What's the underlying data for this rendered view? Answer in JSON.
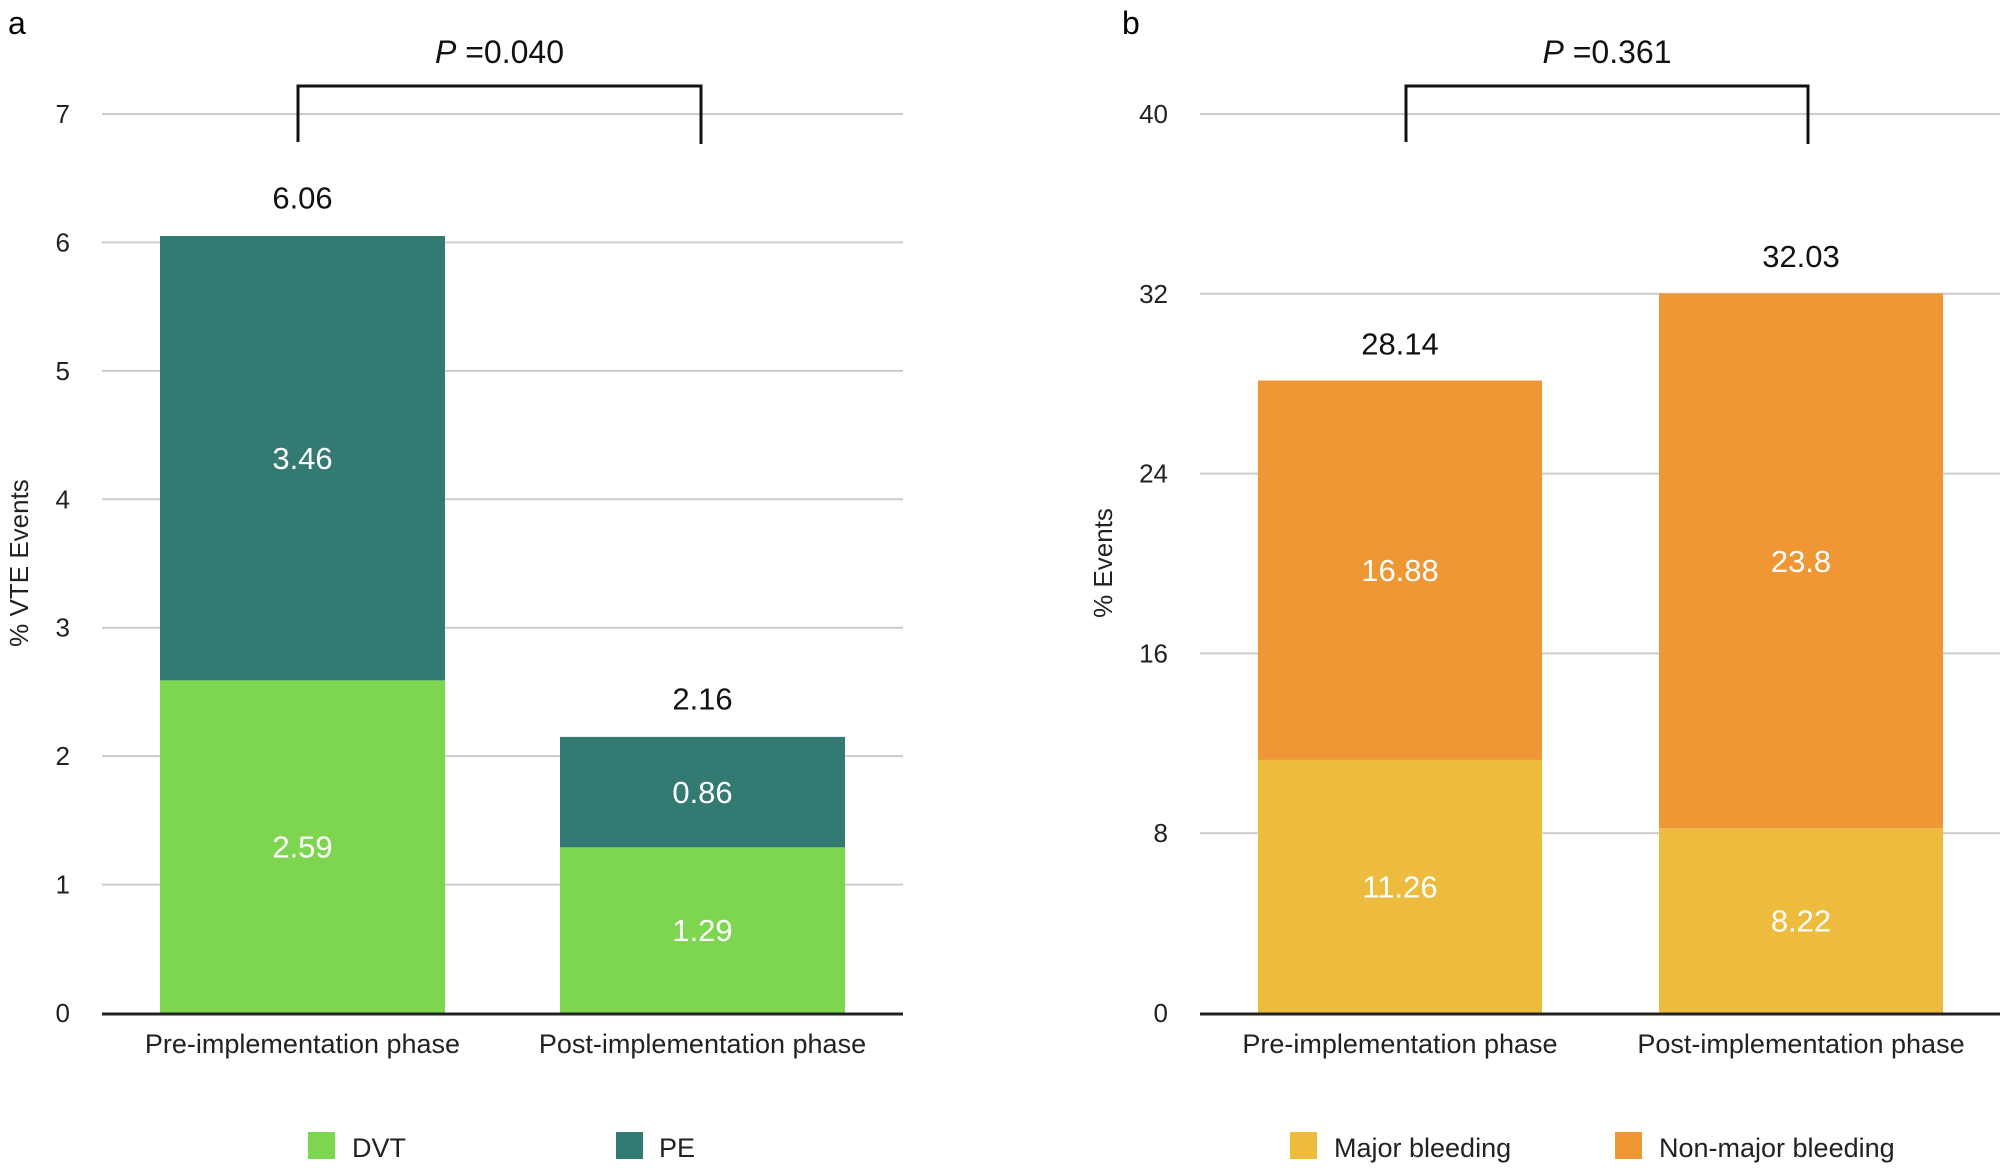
{
  "chart_data": [
    {
      "panel_label": "a",
      "type": "bar",
      "stacked": true,
      "categories": [
        "Pre-implementation phase",
        "Post-implementation phase"
      ],
      "series": [
        {
          "name": "DVT",
          "values": [
            2.59,
            1.29
          ],
          "color": "#7ED650"
        },
        {
          "name": "PE",
          "values": [
            3.46,
            0.86
          ],
          "color": "#337A73"
        }
      ],
      "totals": [
        6.06,
        2.16
      ],
      "ylabel": "% VTE Events",
      "ylim": [
        0,
        7
      ],
      "yticks": [
        0,
        1,
        2,
        3,
        4,
        5,
        6,
        7
      ],
      "grid": true,
      "legend": "bottom",
      "annotation": {
        "prefix": "P",
        "text": " =0.040"
      }
    },
    {
      "panel_label": "b",
      "type": "bar",
      "stacked": true,
      "categories": [
        "Pre-implementation phase",
        "Post-implementation phase"
      ],
      "series": [
        {
          "name": "Major bleeding",
          "values": [
            11.26,
            8.22
          ],
          "color": "#EDBC3E"
        },
        {
          "name": "Non-major bleeding",
          "values": [
            16.88,
            23.8
          ],
          "color": "#F09735"
        }
      ],
      "totals": [
        28.14,
        32.03
      ],
      "ylabel": "%  Events",
      "ylim": [
        0,
        40
      ],
      "yticks": [
        0,
        8,
        16,
        24,
        32,
        40
      ],
      "grid": true,
      "legend": "bottom",
      "annotation": {
        "prefix": "P",
        "text": " =0.361"
      }
    }
  ]
}
